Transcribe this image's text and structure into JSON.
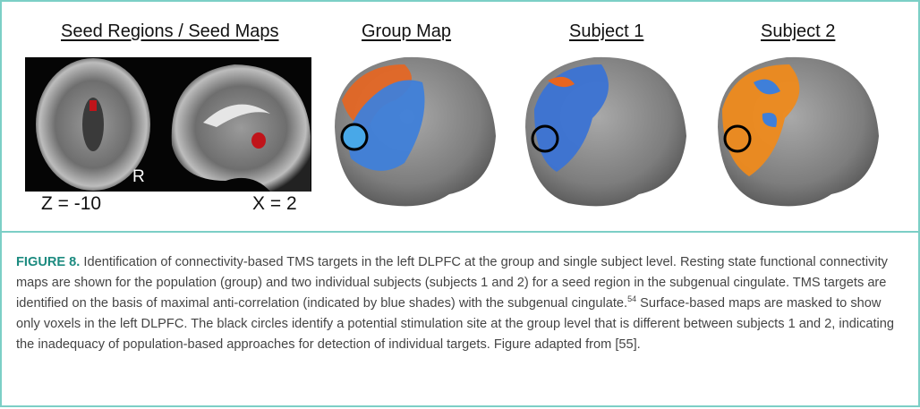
{
  "figure": {
    "panels": [
      {
        "title": "Seed Regions / Seed Maps"
      },
      {
        "title": "Group Map"
      },
      {
        "title": "Subject 1"
      },
      {
        "title": "Subject 2"
      }
    ],
    "labels": {
      "orientation": "R",
      "axial": "Z = -10",
      "sagittal": "X = 2"
    },
    "caption": {
      "label": "FIGURE 8.",
      "text_before": "Identification of connectivity-based TMS targets in the left DLPFC at the group and single subject level. Resting state functional connectivity maps are shown for the population (group) and two individual subjects (subjects 1 and 2) for a seed region in the subgenual cingulate. TMS targets are identified on the basis of maximal anti-correlation (indicated by blue shades) with the subgenual cingulate.",
      "reference": "54",
      "text_after": "Surface-based maps are masked to show only voxels in the left DLPFC. The black circles identify a potential stimulation site at the group level that is different between subjects 1 and 2, indicating the inadequacy of population-based approaches for detection of individual targets. Figure adapted from [55]."
    }
  }
}
